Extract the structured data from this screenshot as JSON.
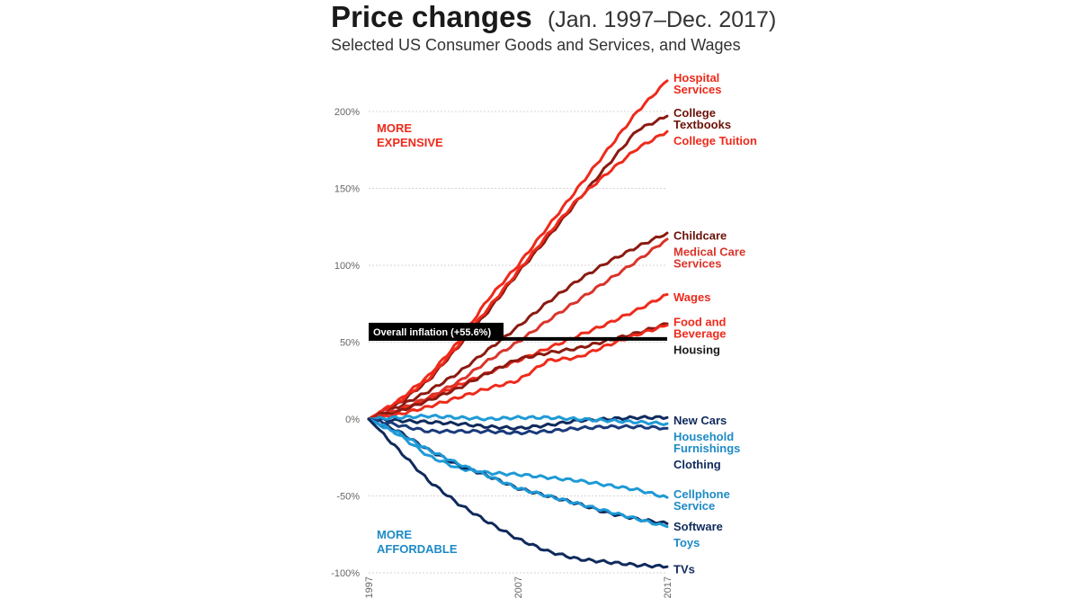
{
  "chart_data": {
    "type": "line",
    "title": "Price changes",
    "title_range": "(Jan. 1997–Dec. 2017)",
    "subtitle": "Selected US Consumer Goods and Services, and Wages",
    "xlabel": "",
    "ylabel": "",
    "x": [
      1997,
      1999,
      2001,
      2003,
      2005,
      2007,
      2009,
      2011,
      2013,
      2015,
      2017
    ],
    "x_ticks": [
      "1997",
      "2007",
      "2017"
    ],
    "y_ticks": [
      "200%",
      "150%",
      "100%",
      "50%",
      "0%",
      "-50%",
      "-100%"
    ],
    "ylim": [
      -100,
      225
    ],
    "xlim": [
      1997,
      2017
    ],
    "grid": true,
    "annotations": {
      "more_expensive": [
        "MORE",
        "EXPENSIVE"
      ],
      "more_affordable": [
        "MORE",
        "AFFORDABLE"
      ],
      "overall_inflation_label": "Overall inflation (+55.6%)",
      "overall_inflation_value": 55.6
    },
    "colors": {
      "red": "#ee2a1b",
      "dark_red": "#8b1a10",
      "mid_red": "#d9342b",
      "navy": "#0f2a5c",
      "light_blue": "#1e9ad6",
      "dark_blue": "#1a3a7a",
      "text_dark": "#1a1a1a",
      "inflation_bar": "#000000"
    },
    "series": [
      {
        "name": "Hospital Services",
        "label_lines": [
          "Hospital",
          "Services"
        ],
        "color": "#ee2a1b",
        "label_color": "#ee2a1b",
        "values": [
          0,
          12,
          28,
          50,
          78,
          100,
          125,
          150,
          175,
          200,
          220
        ]
      },
      {
        "name": "College Textbooks",
        "label_lines": [
          "College",
          "Textbooks"
        ],
        "color": "#8b1a10",
        "label_color": "#6b1208",
        "values": [
          0,
          10,
          25,
          47,
          70,
          95,
          118,
          142,
          165,
          188,
          197
        ]
      },
      {
        "name": "College Tuition",
        "label_lines": [
          "College Tuition"
        ],
        "color": "#ee2a1b",
        "label_color": "#ee2a1b",
        "values": [
          0,
          11,
          26,
          48,
          72,
          96,
          120,
          143,
          160,
          176,
          187
        ]
      },
      {
        "name": "Childcare",
        "label_lines": [
          "Childcare"
        ],
        "color": "#8b1a10",
        "label_color": "#6b1208",
        "values": [
          0,
          8,
          18,
          30,
          45,
          60,
          76,
          90,
          102,
          112,
          121
        ]
      },
      {
        "name": "Medical Care Services",
        "label_lines": [
          "Medical Care",
          "Services"
        ],
        "color": "#d9342b",
        "label_color": "#d9342b",
        "values": [
          0,
          6,
          14,
          24,
          38,
          50,
          64,
          77,
          90,
          103,
          117
        ]
      },
      {
        "name": "Wages",
        "label_lines": [
          "Wages"
        ],
        "color": "#ee2a1b",
        "label_color": "#ee2a1b",
        "values": [
          0,
          5,
          13,
          22,
          30,
          38,
          46,
          54,
          62,
          71,
          81
        ]
      },
      {
        "name": "Housing",
        "label_lines": [
          "Housing"
        ],
        "color": "#8b1a10",
        "label_color": "#1a1a1a",
        "values": [
          0,
          5,
          12,
          20,
          30,
          39,
          43,
          46,
          51,
          56,
          62
        ]
      },
      {
        "name": "Food and Beverage",
        "label_lines": [
          "Food and",
          "Beverage"
        ],
        "color": "#ee2a1b",
        "label_color": "#ee2a1b",
        "values": [
          0,
          3,
          8,
          14,
          20,
          25,
          38,
          40,
          48,
          55,
          61
        ]
      },
      {
        "name": "New Cars",
        "label_lines": [
          "New Cars"
        ],
        "color": "#0f2a5c",
        "label_color": "#0f2a5c",
        "values": [
          0,
          -1,
          -2,
          -3,
          -5,
          -6,
          -4,
          -1,
          0,
          1,
          1
        ]
      },
      {
        "name": "Household Furnishings",
        "label_lines": [
          "Household",
          "Furnishings"
        ],
        "color": "#1e9ad6",
        "label_color": "#1e8ac6",
        "values": [
          0,
          1,
          2,
          1,
          0,
          1,
          1,
          0,
          -1,
          -2,
          -3
        ]
      },
      {
        "name": "Clothing",
        "label_lines": [
          "Clothing"
        ],
        "color": "#1a3a7a",
        "label_color": "#0f2a5c",
        "values": [
          0,
          -4,
          -8,
          -8,
          -8,
          -9,
          -8,
          -6,
          -5,
          -5,
          -6
        ]
      },
      {
        "name": "Cellphone Service",
        "label_lines": [
          "Cellphone",
          "Service"
        ],
        "color": "#1e9ad6",
        "label_color": "#1e8ac6",
        "values": [
          0,
          -10,
          -24,
          -32,
          -35,
          -36,
          -38,
          -40,
          -43,
          -46,
          -51
        ]
      },
      {
        "name": "Software",
        "label_lines": [
          "Software"
        ],
        "color": "#0f2a5c",
        "label_color": "#0f2a5c",
        "values": [
          0,
          -8,
          -20,
          -30,
          -37,
          -45,
          -50,
          -55,
          -61,
          -65,
          -68
        ]
      },
      {
        "name": "Toys",
        "label_lines": [
          "Toys"
        ],
        "color": "#1e9ad6",
        "label_color": "#1e8ac6",
        "values": [
          0,
          -9,
          -20,
          -29,
          -37,
          -45,
          -50,
          -55,
          -60,
          -65,
          -70
        ]
      },
      {
        "name": "TVs",
        "label_lines": [
          "TVs"
        ],
        "color": "#0f2a5c",
        "label_color": "#0f2a5c",
        "values": [
          0,
          -20,
          -40,
          -55,
          -67,
          -78,
          -86,
          -91,
          -93,
          -95,
          -96
        ]
      }
    ]
  }
}
